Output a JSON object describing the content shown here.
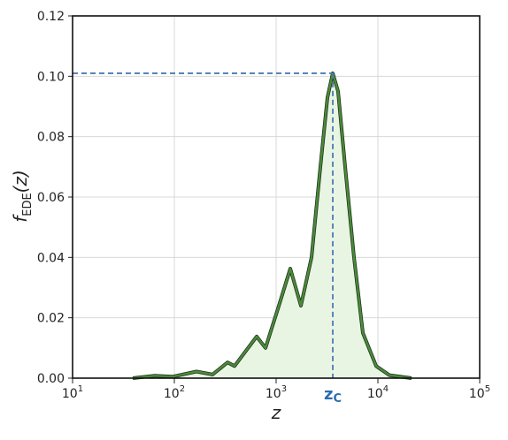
{
  "chart_data": {
    "type": "line",
    "xlabel": "z",
    "ylabel": {
      "text": "f",
      "subscript": "EDE",
      "suffix": "(z)"
    },
    "x_scale": "log",
    "xlim": [
      10,
      100000
    ],
    "ylim": [
      0,
      0.12
    ],
    "xticks": [
      {
        "value": 10,
        "label": "10",
        "exponent": "1"
      },
      {
        "value": 100,
        "label": "10",
        "exponent": "2"
      },
      {
        "value": 1000,
        "label": "10",
        "exponent": "3"
      },
      {
        "value": 10000,
        "label": "10",
        "exponent": "4"
      },
      {
        "value": 100000,
        "label": "10",
        "exponent": "5"
      }
    ],
    "yticks": [
      {
        "value": 0,
        "label": "0.00"
      },
      {
        "value": 0.02,
        "label": "0.02"
      },
      {
        "value": 0.04,
        "label": "0.04"
      },
      {
        "value": 0.06,
        "label": "0.06"
      },
      {
        "value": 0.08,
        "label": "0.08"
      },
      {
        "value": 0.1,
        "label": "0.10"
      },
      {
        "value": 0.12,
        "label": "0.12"
      }
    ],
    "grid": true,
    "fill": "#e9f5e3",
    "series": [
      {
        "color": "#4a8a3a",
        "x": [
          39,
          64,
          96,
          165,
          237,
          333,
          390,
          644,
          787,
          1063,
          1377,
          1751,
          2228,
          2722,
          3195,
          3604,
          4064,
          4770,
          5822,
          7115,
          9610,
          12980,
          21400
        ],
        "values": [
          0,
          0.0008,
          0.0005,
          0.0022,
          0.0012,
          0.0052,
          0.004,
          0.0138,
          0.01,
          0.024,
          0.0363,
          0.024,
          0.04,
          0.07,
          0.093,
          0.101,
          0.095,
          0.07,
          0.04,
          0.015,
          0.004,
          0.001,
          0
        ]
      }
    ],
    "reference": {
      "x": 3604,
      "y": 0.101,
      "color": "#4a7ab5"
    },
    "annotation": {
      "text": "z",
      "subscript": "C",
      "color": "#2a6db0"
    }
  }
}
